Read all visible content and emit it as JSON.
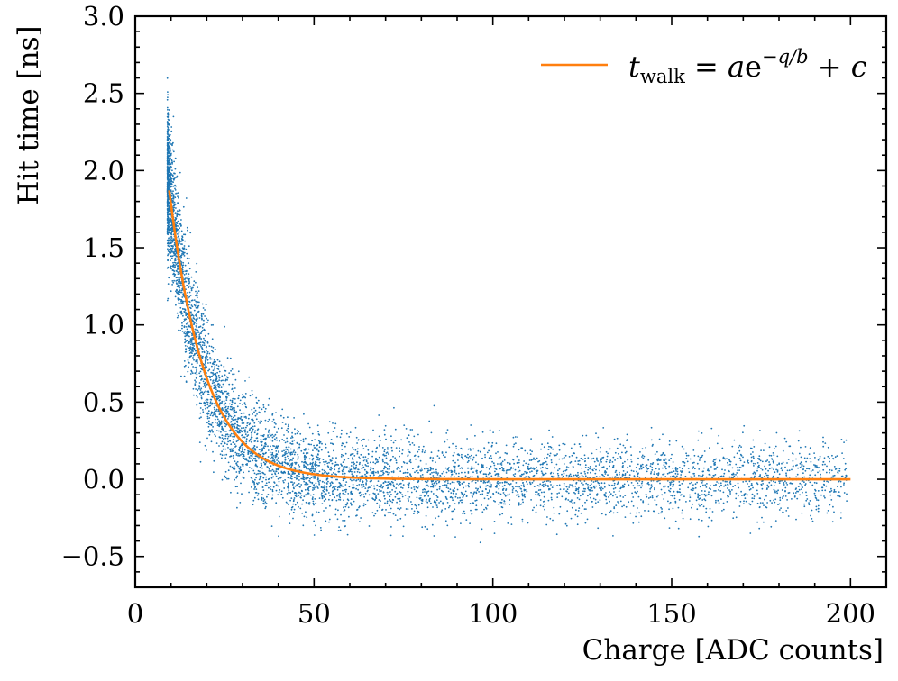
{
  "chart_data": {
    "type": "scatter",
    "xlabel": "Charge [ADC counts]",
    "ylabel": "Hit time [ns]",
    "xlim": [
      0,
      210
    ],
    "ylim": [
      -0.7,
      3.0
    ],
    "x_ticks": [
      0,
      50,
      100,
      150,
      200
    ],
    "x_tick_labels": [
      "0",
      "50",
      "100",
      "150",
      "200"
    ],
    "y_ticks": [
      -0.5,
      0.0,
      0.5,
      1.0,
      1.5,
      2.0,
      2.5,
      3.0
    ],
    "y_tick_labels": [
      "−0.5",
      "0.0",
      "0.5",
      "1.0",
      "1.5",
      "2.0",
      "2.5",
      "3.0"
    ],
    "x_minor_step": 10,
    "y_minor_step": 0.1,
    "grid": false,
    "legend_position": "top-right",
    "colors": {
      "scatter": "#1f77b4",
      "fit": "#ff7f0e"
    },
    "series": [
      {
        "name": "data",
        "kind": "scatter",
        "description_count": 6000,
        "x_range": [
          9,
          199
        ],
        "approx_spread_ns": 0.12
      },
      {
        "name": "fit",
        "kind": "line",
        "x_range": [
          9.5,
          200
        ],
        "params": {
          "a": 4.84,
          "b": 10.0,
          "c": 0.0
        },
        "legend": {
          "t": "t",
          "sub": "walk",
          "eq": " = ",
          "a": "a",
          "e": "e",
          "exp": "−q/b",
          "plus": " + ",
          "c": "c"
        }
      }
    ]
  }
}
